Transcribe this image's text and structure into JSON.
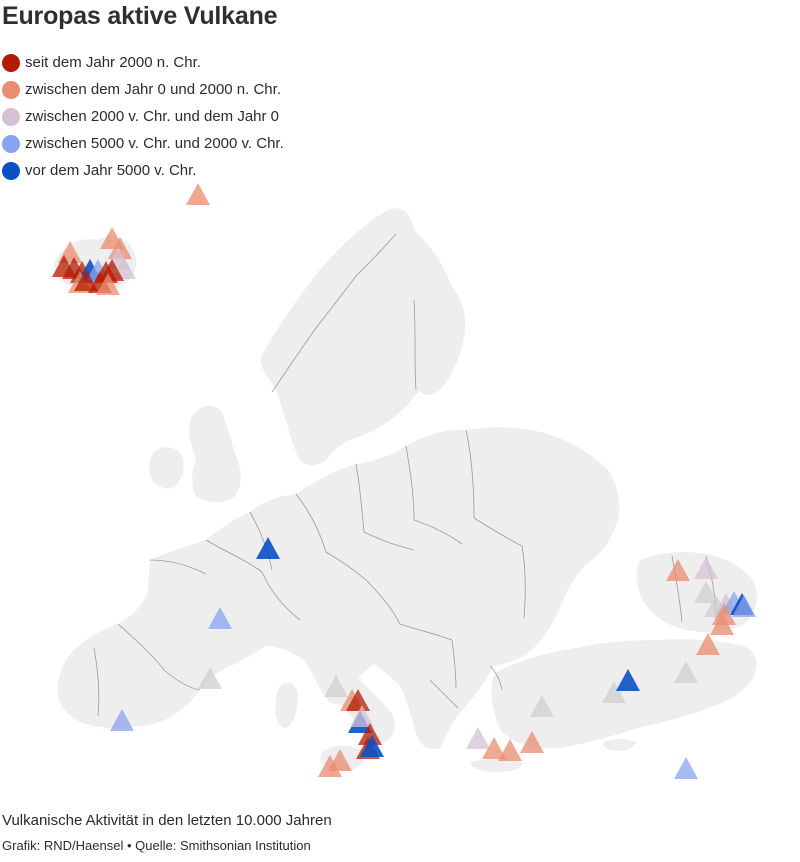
{
  "title": "Europas aktive Vulkane",
  "legend": [
    {
      "label": "seit dem Jahr 2000 n. Chr.",
      "color": "#b31b00"
    },
    {
      "label": "zwischen dem Jahr 0 und 2000 n. Chr.",
      "color": "#ea8c6f"
    },
    {
      "label": "zwischen 2000 v. Chr. und dem Jahr 0",
      "color": "#d4c2d4"
    },
    {
      "label": "zwischen 5000 v. Chr. und 2000 v. Chr.",
      "color": "#8aa3ee"
    },
    {
      "label": "vor dem Jahr 5000 v. Chr.",
      "color": "#0b4fc7"
    }
  ],
  "subtitle": "Vulkanische Aktivität in den letzten 10.000 Jahren",
  "credit": "Grafik: RND/Haensel • Quelle: Smithsonian Institution",
  "colors": {
    "land": "#eeeeee",
    "border": "#9a9a9a",
    "unknown": "#cfcfcf"
  }
}
